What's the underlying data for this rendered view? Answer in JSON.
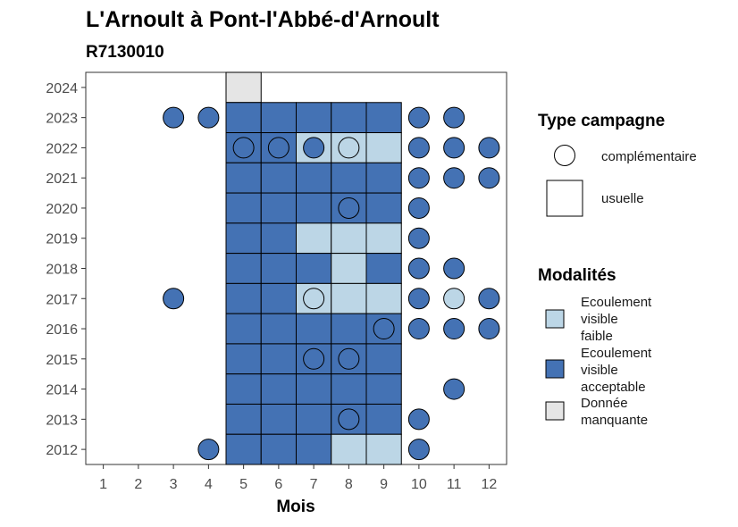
{
  "chart_data": {
    "type": "heatmap",
    "title": "L'Arnoult à Pont-l'Abbé-d'Arnoult",
    "subtitle": "R7130010",
    "xlabel": "Mois",
    "ylabel": "",
    "x_ticks": [
      "1",
      "2",
      "3",
      "4",
      "5",
      "6",
      "7",
      "8",
      "9",
      "10",
      "11",
      "12"
    ],
    "y_ticks": [
      "2024",
      "2023",
      "2022",
      "2021",
      "2020",
      "2019",
      "2018",
      "2017",
      "2016",
      "2015",
      "2014",
      "2013",
      "2012"
    ],
    "xlim": [
      0.5,
      12.5
    ],
    "ylim": [
      2011.5,
      2024.5
    ],
    "colors": {
      "Ecoulement visible faible": "#bcd6e6",
      "Ecoulement visible acceptable": "#4472b4",
      "Donnée manquante": "#e5e5e5"
    },
    "legend_type": {
      "title": "Type campagne",
      "entries": [
        "complémentaire",
        "usuelle"
      ]
    },
    "legend_modalites": {
      "title": "Modalités",
      "entries": [
        {
          "key": "Ecoulement visible faible",
          "lines": [
            "Ecoulement",
            "visible",
            "faible"
          ]
        },
        {
          "key": "Ecoulement visible acceptable",
          "lines": [
            "Ecoulement",
            "visible",
            "acceptable"
          ]
        },
        {
          "key": "Donnée manquante",
          "lines": [
            "Donnée",
            "manquante"
          ]
        }
      ]
    },
    "usuelle": [
      {
        "year": 2024,
        "month": 5,
        "cat": "Donnée manquante"
      },
      {
        "year": 2023,
        "month": 5,
        "cat": "Ecoulement visible acceptable"
      },
      {
        "year": 2023,
        "month": 6,
        "cat": "Ecoulement visible acceptable"
      },
      {
        "year": 2023,
        "month": 7,
        "cat": "Ecoulement visible acceptable"
      },
      {
        "year": 2023,
        "month": 8,
        "cat": "Ecoulement visible acceptable"
      },
      {
        "year": 2023,
        "month": 9,
        "cat": "Ecoulement visible acceptable"
      },
      {
        "year": 2022,
        "month": 5,
        "cat": "Ecoulement visible acceptable"
      },
      {
        "year": 2022,
        "month": 6,
        "cat": "Ecoulement visible acceptable"
      },
      {
        "year": 2022,
        "month": 7,
        "cat": "Ecoulement visible faible"
      },
      {
        "year": 2022,
        "month": 8,
        "cat": "Ecoulement visible faible"
      },
      {
        "year": 2022,
        "month": 9,
        "cat": "Ecoulement visible faible"
      },
      {
        "year": 2021,
        "month": 5,
        "cat": "Ecoulement visible acceptable"
      },
      {
        "year": 2021,
        "month": 6,
        "cat": "Ecoulement visible acceptable"
      },
      {
        "year": 2021,
        "month": 7,
        "cat": "Ecoulement visible acceptable"
      },
      {
        "year": 2021,
        "month": 8,
        "cat": "Ecoulement visible acceptable"
      },
      {
        "year": 2021,
        "month": 9,
        "cat": "Ecoulement visible acceptable"
      },
      {
        "year": 2020,
        "month": 5,
        "cat": "Ecoulement visible acceptable"
      },
      {
        "year": 2020,
        "month": 6,
        "cat": "Ecoulement visible acceptable"
      },
      {
        "year": 2020,
        "month": 7,
        "cat": "Ecoulement visible acceptable"
      },
      {
        "year": 2020,
        "month": 8,
        "cat": "Ecoulement visible acceptable"
      },
      {
        "year": 2020,
        "month": 9,
        "cat": "Ecoulement visible acceptable"
      },
      {
        "year": 2019,
        "month": 5,
        "cat": "Ecoulement visible acceptable"
      },
      {
        "year": 2019,
        "month": 6,
        "cat": "Ecoulement visible acceptable"
      },
      {
        "year": 2019,
        "month": 7,
        "cat": "Ecoulement visible faible"
      },
      {
        "year": 2019,
        "month": 8,
        "cat": "Ecoulement visible faible"
      },
      {
        "year": 2019,
        "month": 9,
        "cat": "Ecoulement visible faible"
      },
      {
        "year": 2018,
        "month": 5,
        "cat": "Ecoulement visible acceptable"
      },
      {
        "year": 2018,
        "month": 6,
        "cat": "Ecoulement visible acceptable"
      },
      {
        "year": 2018,
        "month": 7,
        "cat": "Ecoulement visible acceptable"
      },
      {
        "year": 2018,
        "month": 8,
        "cat": "Ecoulement visible faible"
      },
      {
        "year": 2018,
        "month": 9,
        "cat": "Ecoulement visible acceptable"
      },
      {
        "year": 2017,
        "month": 5,
        "cat": "Ecoulement visible acceptable"
      },
      {
        "year": 2017,
        "month": 6,
        "cat": "Ecoulement visible acceptable"
      },
      {
        "year": 2017,
        "month": 7,
        "cat": "Ecoulement visible faible"
      },
      {
        "year": 2017,
        "month": 8,
        "cat": "Ecoulement visible faible"
      },
      {
        "year": 2017,
        "month": 9,
        "cat": "Ecoulement visible faible"
      },
      {
        "year": 2016,
        "month": 5,
        "cat": "Ecoulement visible acceptable"
      },
      {
        "year": 2016,
        "month": 6,
        "cat": "Ecoulement visible acceptable"
      },
      {
        "year": 2016,
        "month": 7,
        "cat": "Ecoulement visible acceptable"
      },
      {
        "year": 2016,
        "month": 8,
        "cat": "Ecoulement visible acceptable"
      },
      {
        "year": 2016,
        "month": 9,
        "cat": "Ecoulement visible acceptable"
      },
      {
        "year": 2015,
        "month": 5,
        "cat": "Ecoulement visible acceptable"
      },
      {
        "year": 2015,
        "month": 6,
        "cat": "Ecoulement visible acceptable"
      },
      {
        "year": 2015,
        "month": 7,
        "cat": "Ecoulement visible acceptable"
      },
      {
        "year": 2015,
        "month": 8,
        "cat": "Ecoulement visible acceptable"
      },
      {
        "year": 2015,
        "month": 9,
        "cat": "Ecoulement visible acceptable"
      },
      {
        "year": 2014,
        "month": 5,
        "cat": "Ecoulement visible acceptable"
      },
      {
        "year": 2014,
        "month": 6,
        "cat": "Ecoulement visible acceptable"
      },
      {
        "year": 2014,
        "month": 7,
        "cat": "Ecoulement visible acceptable"
      },
      {
        "year": 2014,
        "month": 8,
        "cat": "Ecoulement visible acceptable"
      },
      {
        "year": 2014,
        "month": 9,
        "cat": "Ecoulement visible acceptable"
      },
      {
        "year": 2013,
        "month": 5,
        "cat": "Ecoulement visible acceptable"
      },
      {
        "year": 2013,
        "month": 6,
        "cat": "Ecoulement visible acceptable"
      },
      {
        "year": 2013,
        "month": 7,
        "cat": "Ecoulement visible acceptable"
      },
      {
        "year": 2013,
        "month": 8,
        "cat": "Ecoulement visible acceptable"
      },
      {
        "year": 2013,
        "month": 9,
        "cat": "Ecoulement visible acceptable"
      },
      {
        "year": 2012,
        "month": 5,
        "cat": "Ecoulement visible acceptable"
      },
      {
        "year": 2012,
        "month": 6,
        "cat": "Ecoulement visible acceptable"
      },
      {
        "year": 2012,
        "month": 7,
        "cat": "Ecoulement visible acceptable"
      },
      {
        "year": 2012,
        "month": 8,
        "cat": "Ecoulement visible faible"
      },
      {
        "year": 2012,
        "month": 9,
        "cat": "Ecoulement visible faible"
      }
    ],
    "complementaire": [
      {
        "year": 2023,
        "month": 3,
        "cat": "Ecoulement visible acceptable"
      },
      {
        "year": 2023,
        "month": 4,
        "cat": "Ecoulement visible acceptable"
      },
      {
        "year": 2023,
        "month": 10,
        "cat": "Ecoulement visible acceptable"
      },
      {
        "year": 2023,
        "month": 11,
        "cat": "Ecoulement visible acceptable"
      },
      {
        "year": 2022,
        "month": 5,
        "cat": "Ecoulement visible acceptable"
      },
      {
        "year": 2022,
        "month": 6,
        "cat": "Ecoulement visible acceptable"
      },
      {
        "year": 2022,
        "month": 7,
        "cat": "Ecoulement visible acceptable"
      },
      {
        "year": 2022,
        "month": 8,
        "cat": "Ecoulement visible faible"
      },
      {
        "year": 2022,
        "month": 10,
        "cat": "Ecoulement visible acceptable"
      },
      {
        "year": 2022,
        "month": 11,
        "cat": "Ecoulement visible acceptable"
      },
      {
        "year": 2022,
        "month": 12,
        "cat": "Ecoulement visible acceptable"
      },
      {
        "year": 2021,
        "month": 10,
        "cat": "Ecoulement visible acceptable"
      },
      {
        "year": 2021,
        "month": 11,
        "cat": "Ecoulement visible acceptable"
      },
      {
        "year": 2021,
        "month": 12,
        "cat": "Ecoulement visible acceptable"
      },
      {
        "year": 2020,
        "month": 8,
        "cat": "Ecoulement visible acceptable"
      },
      {
        "year": 2020,
        "month": 10,
        "cat": "Ecoulement visible acceptable"
      },
      {
        "year": 2019,
        "month": 10,
        "cat": "Ecoulement visible acceptable"
      },
      {
        "year": 2018,
        "month": 10,
        "cat": "Ecoulement visible acceptable"
      },
      {
        "year": 2018,
        "month": 11,
        "cat": "Ecoulement visible acceptable"
      },
      {
        "year": 2017,
        "month": 3,
        "cat": "Ecoulement visible acceptable"
      },
      {
        "year": 2017,
        "month": 7,
        "cat": "Ecoulement visible faible"
      },
      {
        "year": 2017,
        "month": 10,
        "cat": "Ecoulement visible acceptable"
      },
      {
        "year": 2017,
        "month": 11,
        "cat": "Ecoulement visible faible"
      },
      {
        "year": 2017,
        "month": 12,
        "cat": "Ecoulement visible acceptable"
      },
      {
        "year": 2016,
        "month": 9,
        "cat": "Ecoulement visible acceptable"
      },
      {
        "year": 2016,
        "month": 10,
        "cat": "Ecoulement visible acceptable"
      },
      {
        "year": 2016,
        "month": 11,
        "cat": "Ecoulement visible acceptable"
      },
      {
        "year": 2016,
        "month": 12,
        "cat": "Ecoulement visible acceptable"
      },
      {
        "year": 2015,
        "month": 7,
        "cat": "Ecoulement visible acceptable"
      },
      {
        "year": 2015,
        "month": 8,
        "cat": "Ecoulement visible acceptable"
      },
      {
        "year": 2014,
        "month": 11,
        "cat": "Ecoulement visible acceptable"
      },
      {
        "year": 2013,
        "month": 8,
        "cat": "Ecoulement visible acceptable"
      },
      {
        "year": 2013,
        "month": 10,
        "cat": "Ecoulement visible acceptable"
      },
      {
        "year": 2012,
        "month": 4,
        "cat": "Ecoulement visible acceptable"
      },
      {
        "year": 2012,
        "month": 10,
        "cat": "Ecoulement visible acceptable"
      }
    ]
  }
}
